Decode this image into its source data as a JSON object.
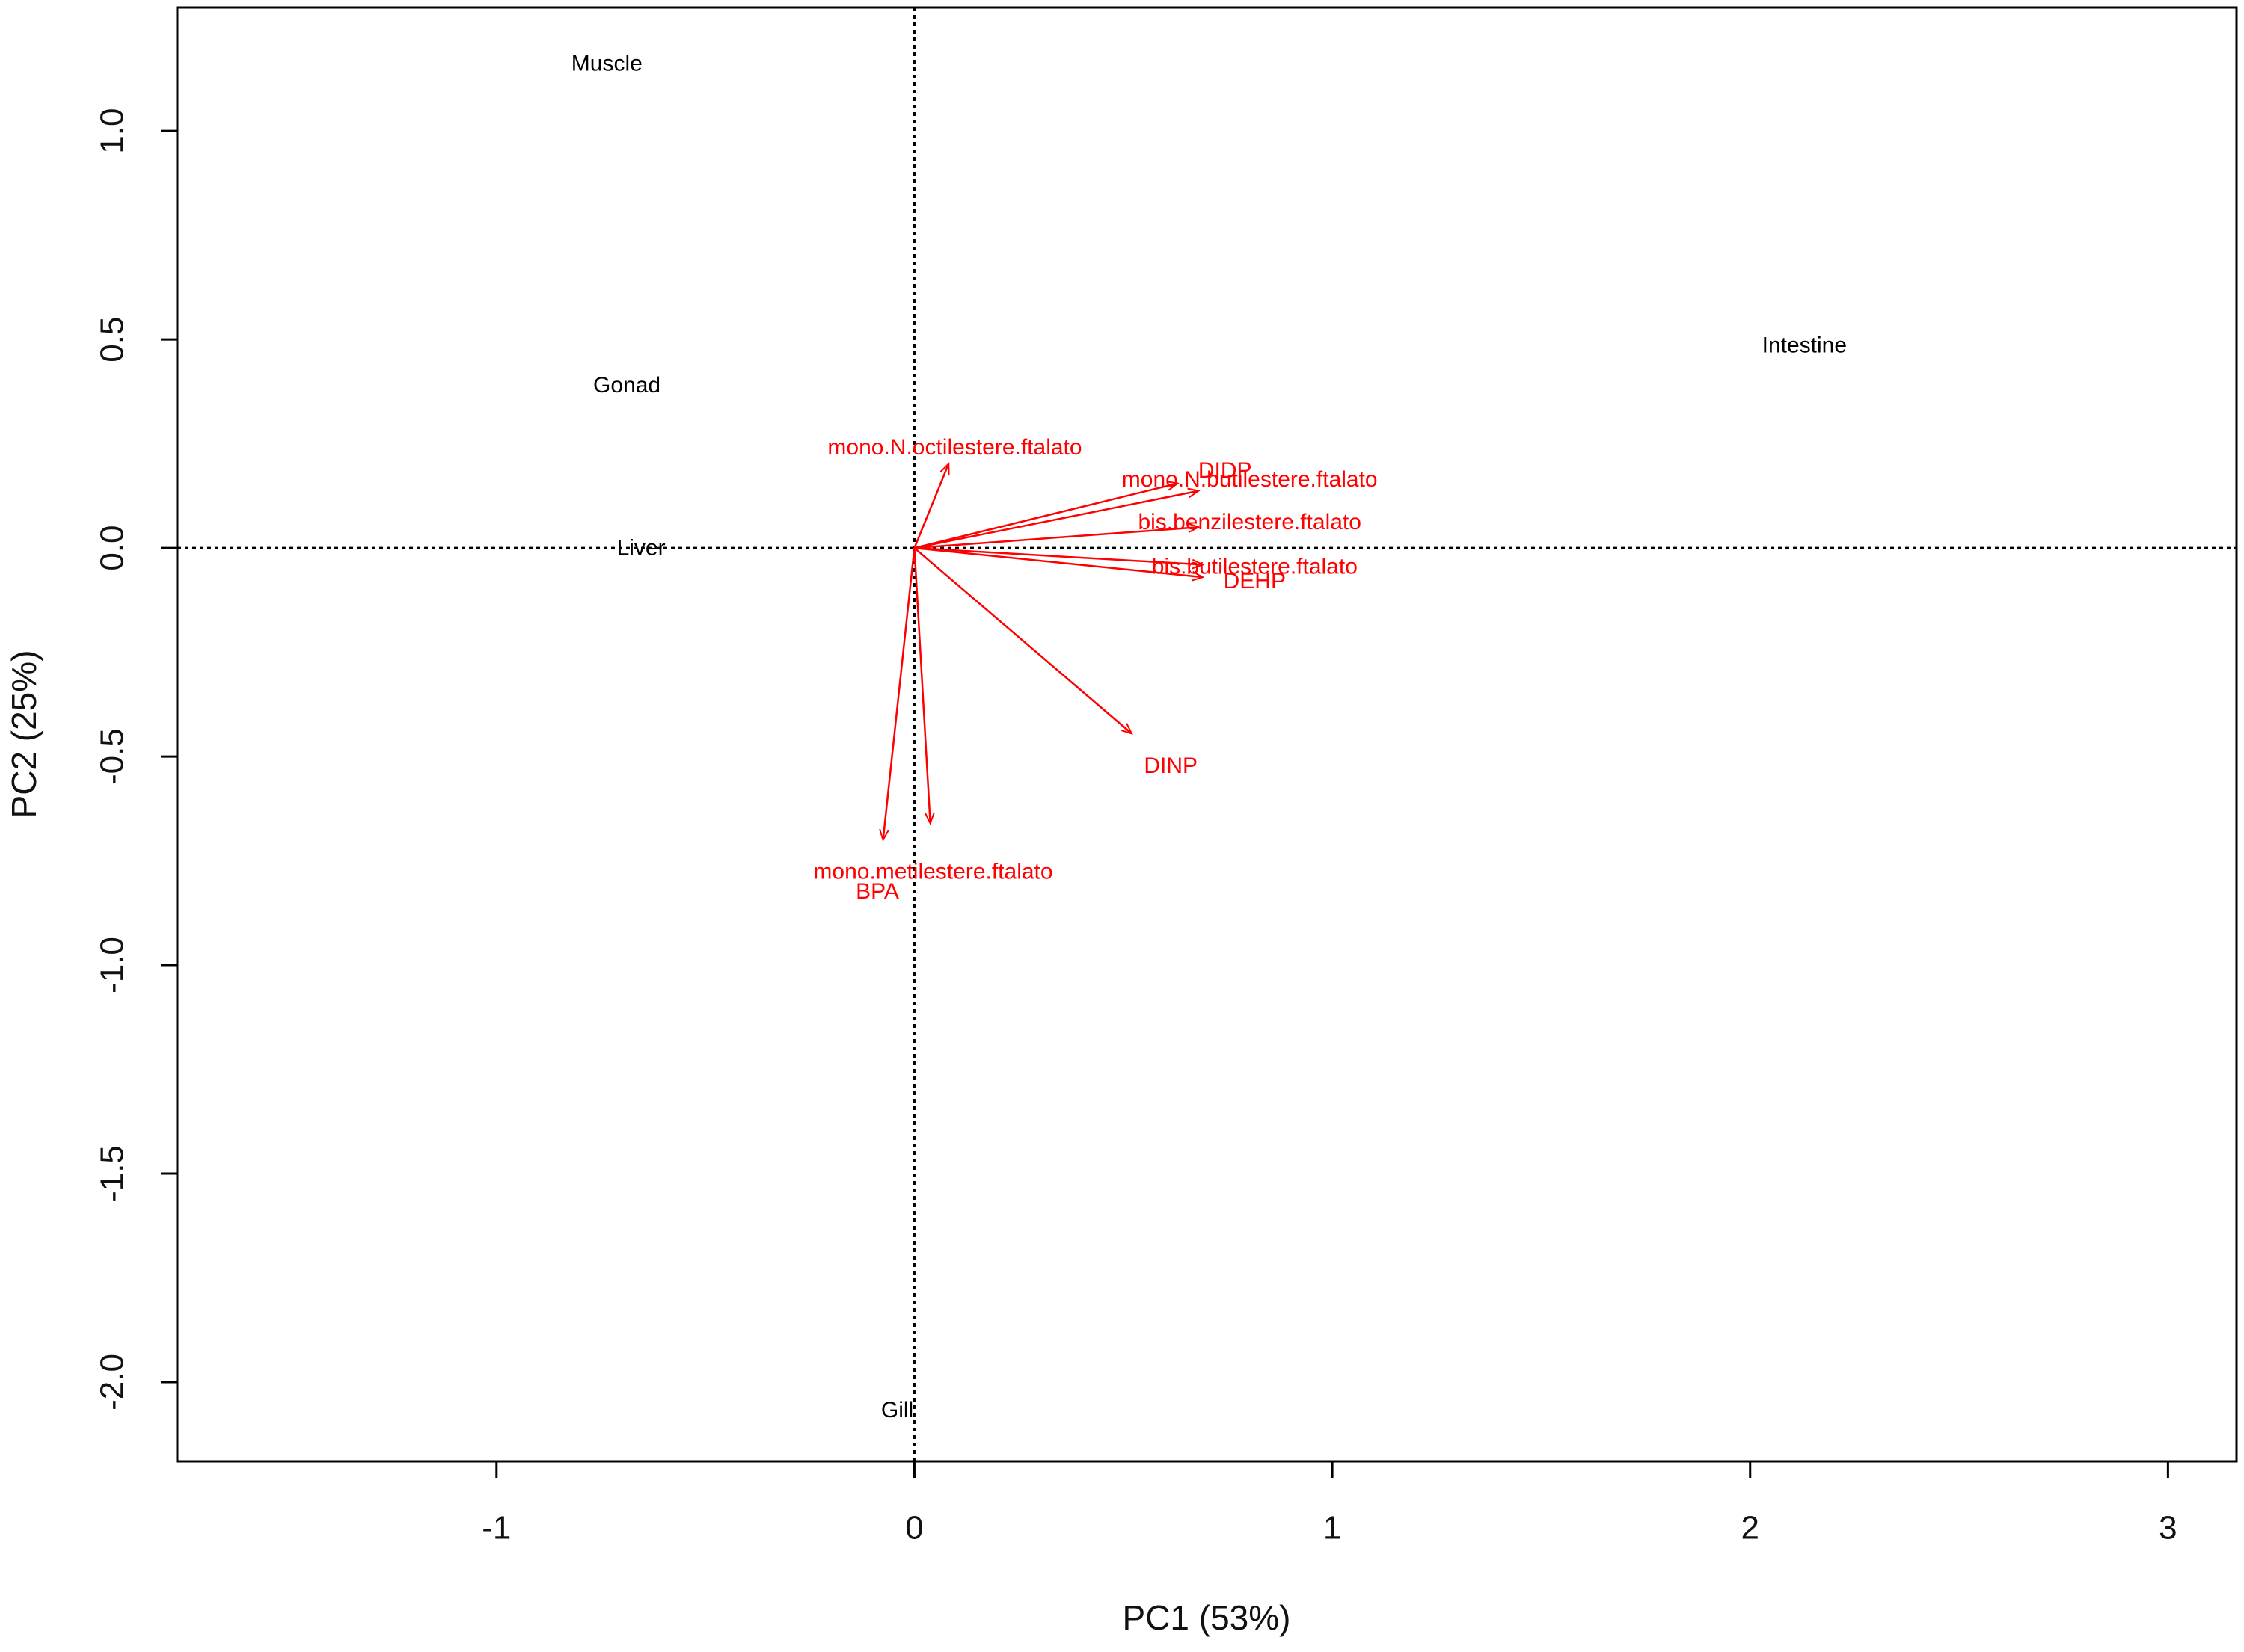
{
  "chart_data": {
    "type": "biplot",
    "xlabel": "PC1 (53%)",
    "ylabel": "PC2 (25%)",
    "xlim": [
      -1.764,
      3.164
    ],
    "ylim": [
      -2.19,
      1.296
    ],
    "xticks": [
      -1,
      0,
      1,
      2,
      3
    ],
    "yticks": [
      {
        "value": -2,
        "label": "-2.0"
      },
      {
        "value": -1.5,
        "label": "-1.5"
      },
      {
        "value": -1,
        "label": "-1.0"
      },
      {
        "value": -0.5,
        "label": "-0.5"
      },
      {
        "value": 0,
        "label": "0.0"
      },
      {
        "value": 0.5,
        "label": "0.5"
      },
      {
        "value": 1,
        "label": "1.0"
      }
    ],
    "zero_lines": true,
    "samples": {
      "color": "#000000",
      "labels": [
        "Muscle",
        "Gonad",
        "Liver",
        "Intestine",
        "Gill"
      ],
      "x": [
        -0.736,
        -0.688,
        -0.654,
        2.13,
        -0.041
      ],
      "y": [
        1.159,
        0.387,
        -0.003,
        0.483,
        -2.07
      ]
    },
    "loadings": {
      "color": "#ff0000",
      "labels": [
        "mono.N.octilestere.ftalato",
        "DIDP",
        "mono.N.butilestere.ftalato",
        "bis.benzilestere.ftalato",
        "bis.butilestere.ftalato",
        "DEHP",
        "DINP",
        "mono.metilestere.ftalato",
        "BPA"
      ],
      "x": [
        0.082,
        0.63,
        0.68,
        0.68,
        0.69,
        0.69,
        0.52,
        0.038,
        -0.075
      ],
      "y": [
        0.202,
        0.155,
        0.137,
        0.05,
        -0.04,
        -0.07,
        -0.445,
        -0.66,
        -0.7
      ]
    }
  }
}
